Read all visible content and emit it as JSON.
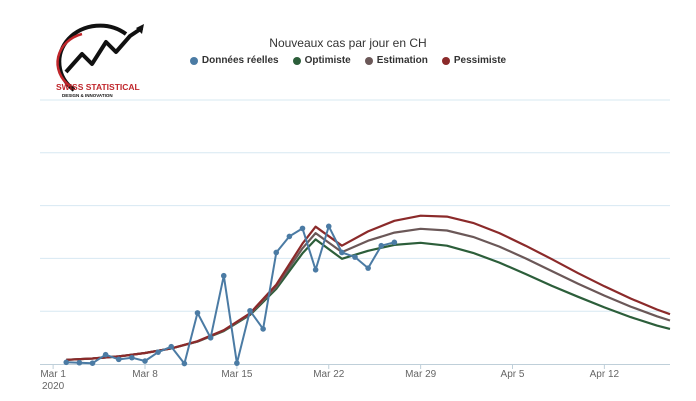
{
  "logo": {
    "line1": "SWISS STATISTICAL",
    "line2": "DESIGN & INNOVATION"
  },
  "chart_data": {
    "type": "line",
    "title": "Nouveaux cas par jour en CH",
    "xlabel": "",
    "ylabel": "",
    "x_ticks": [
      "Mar 1",
      "Mar 8",
      "Mar 15",
      "Mar 22",
      "Mar 29",
      "Apr 5",
      "Apr 12"
    ],
    "x_year_label": "2020",
    "x_domain": [
      "2020-02-29",
      "2020-04-17"
    ],
    "y_range": [
      0,
      1250
    ],
    "y_gridlines": [
      0,
      250,
      500,
      750,
      1000,
      1250
    ],
    "grid": true,
    "legend_position": "top",
    "series": [
      {
        "name": "Données réelles",
        "color": "#4b7ba4",
        "marker": "circle",
        "points": [
          [
            "2020-03-02",
            8
          ],
          [
            "2020-03-03",
            6
          ],
          [
            "2020-03-04",
            4
          ],
          [
            "2020-03-05",
            44
          ],
          [
            "2020-03-06",
            22
          ],
          [
            "2020-03-07",
            30
          ],
          [
            "2020-03-08",
            14
          ],
          [
            "2020-03-09",
            56
          ],
          [
            "2020-03-10",
            82
          ],
          [
            "2020-03-11",
            2
          ],
          [
            "2020-03-12",
            242
          ],
          [
            "2020-03-13",
            124
          ],
          [
            "2020-03-14",
            418
          ],
          [
            "2020-03-15",
            4
          ],
          [
            "2020-03-16",
            252
          ],
          [
            "2020-03-17",
            166
          ],
          [
            "2020-03-18",
            528
          ],
          [
            "2020-03-19",
            604
          ],
          [
            "2020-03-20",
            642
          ],
          [
            "2020-03-21",
            446
          ],
          [
            "2020-03-22",
            652
          ],
          [
            "2020-03-23",
            528
          ],
          [
            "2020-03-24",
            506
          ],
          [
            "2020-03-25",
            454
          ],
          [
            "2020-03-26",
            560
          ],
          [
            "2020-03-27",
            576
          ]
        ]
      },
      {
        "name": "Optimiste",
        "color": "#2c5e3a",
        "points": [
          [
            "2020-03-02",
            20
          ],
          [
            "2020-03-04",
            26
          ],
          [
            "2020-03-06",
            36
          ],
          [
            "2020-03-08",
            52
          ],
          [
            "2020-03-10",
            74
          ],
          [
            "2020-03-12",
            106
          ],
          [
            "2020-03-14",
            156
          ],
          [
            "2020-03-16",
            232
          ],
          [
            "2020-03-18",
            356
          ],
          [
            "2020-03-20",
            524
          ],
          [
            "2020-03-21",
            590
          ],
          [
            "2020-03-23",
            498
          ],
          [
            "2020-03-25",
            536
          ],
          [
            "2020-03-27",
            564
          ],
          [
            "2020-03-29",
            574
          ],
          [
            "2020-03-31",
            560
          ],
          [
            "2020-04-02",
            526
          ],
          [
            "2020-04-04",
            480
          ],
          [
            "2020-04-06",
            426
          ],
          [
            "2020-04-08",
            370
          ],
          [
            "2020-04-10",
            318
          ],
          [
            "2020-04-12",
            268
          ],
          [
            "2020-04-14",
            222
          ],
          [
            "2020-04-16",
            182
          ],
          [
            "2020-04-17",
            166
          ]
        ]
      },
      {
        "name": "Estimation",
        "color": "#6b5858",
        "points": [
          [
            "2020-03-02",
            20
          ],
          [
            "2020-03-04",
            26
          ],
          [
            "2020-03-06",
            36
          ],
          [
            "2020-03-08",
            52
          ],
          [
            "2020-03-10",
            74
          ],
          [
            "2020-03-12",
            106
          ],
          [
            "2020-03-14",
            158
          ],
          [
            "2020-03-16",
            236
          ],
          [
            "2020-03-18",
            366
          ],
          [
            "2020-03-20",
            548
          ],
          [
            "2020-03-21",
            620
          ],
          [
            "2020-03-23",
            530
          ],
          [
            "2020-03-25",
            584
          ],
          [
            "2020-03-27",
            622
          ],
          [
            "2020-03-29",
            640
          ],
          [
            "2020-03-31",
            632
          ],
          [
            "2020-04-02",
            602
          ],
          [
            "2020-04-04",
            556
          ],
          [
            "2020-04-06",
            500
          ],
          [
            "2020-04-08",
            440
          ],
          [
            "2020-04-10",
            380
          ],
          [
            "2020-04-12",
            324
          ],
          [
            "2020-04-14",
            272
          ],
          [
            "2020-04-16",
            226
          ],
          [
            "2020-04-17",
            206
          ]
        ]
      },
      {
        "name": "Pessimiste",
        "color": "#8b2a2a",
        "points": [
          [
            "2020-03-02",
            20
          ],
          [
            "2020-03-04",
            26
          ],
          [
            "2020-03-06",
            36
          ],
          [
            "2020-03-08",
            52
          ],
          [
            "2020-03-10",
            74
          ],
          [
            "2020-03-12",
            108
          ],
          [
            "2020-03-14",
            160
          ],
          [
            "2020-03-16",
            240
          ],
          [
            "2020-03-18",
            376
          ],
          [
            "2020-03-20",
            570
          ],
          [
            "2020-03-21",
            650
          ],
          [
            "2020-03-23",
            560
          ],
          [
            "2020-03-25",
            628
          ],
          [
            "2020-03-27",
            678
          ],
          [
            "2020-03-29",
            702
          ],
          [
            "2020-03-31",
            698
          ],
          [
            "2020-04-02",
            668
          ],
          [
            "2020-04-04",
            620
          ],
          [
            "2020-04-06",
            560
          ],
          [
            "2020-04-08",
            496
          ],
          [
            "2020-04-10",
            430
          ],
          [
            "2020-04-12",
            368
          ],
          [
            "2020-04-14",
            310
          ],
          [
            "2020-04-16",
            258
          ],
          [
            "2020-04-17",
            236
          ]
        ]
      }
    ]
  }
}
